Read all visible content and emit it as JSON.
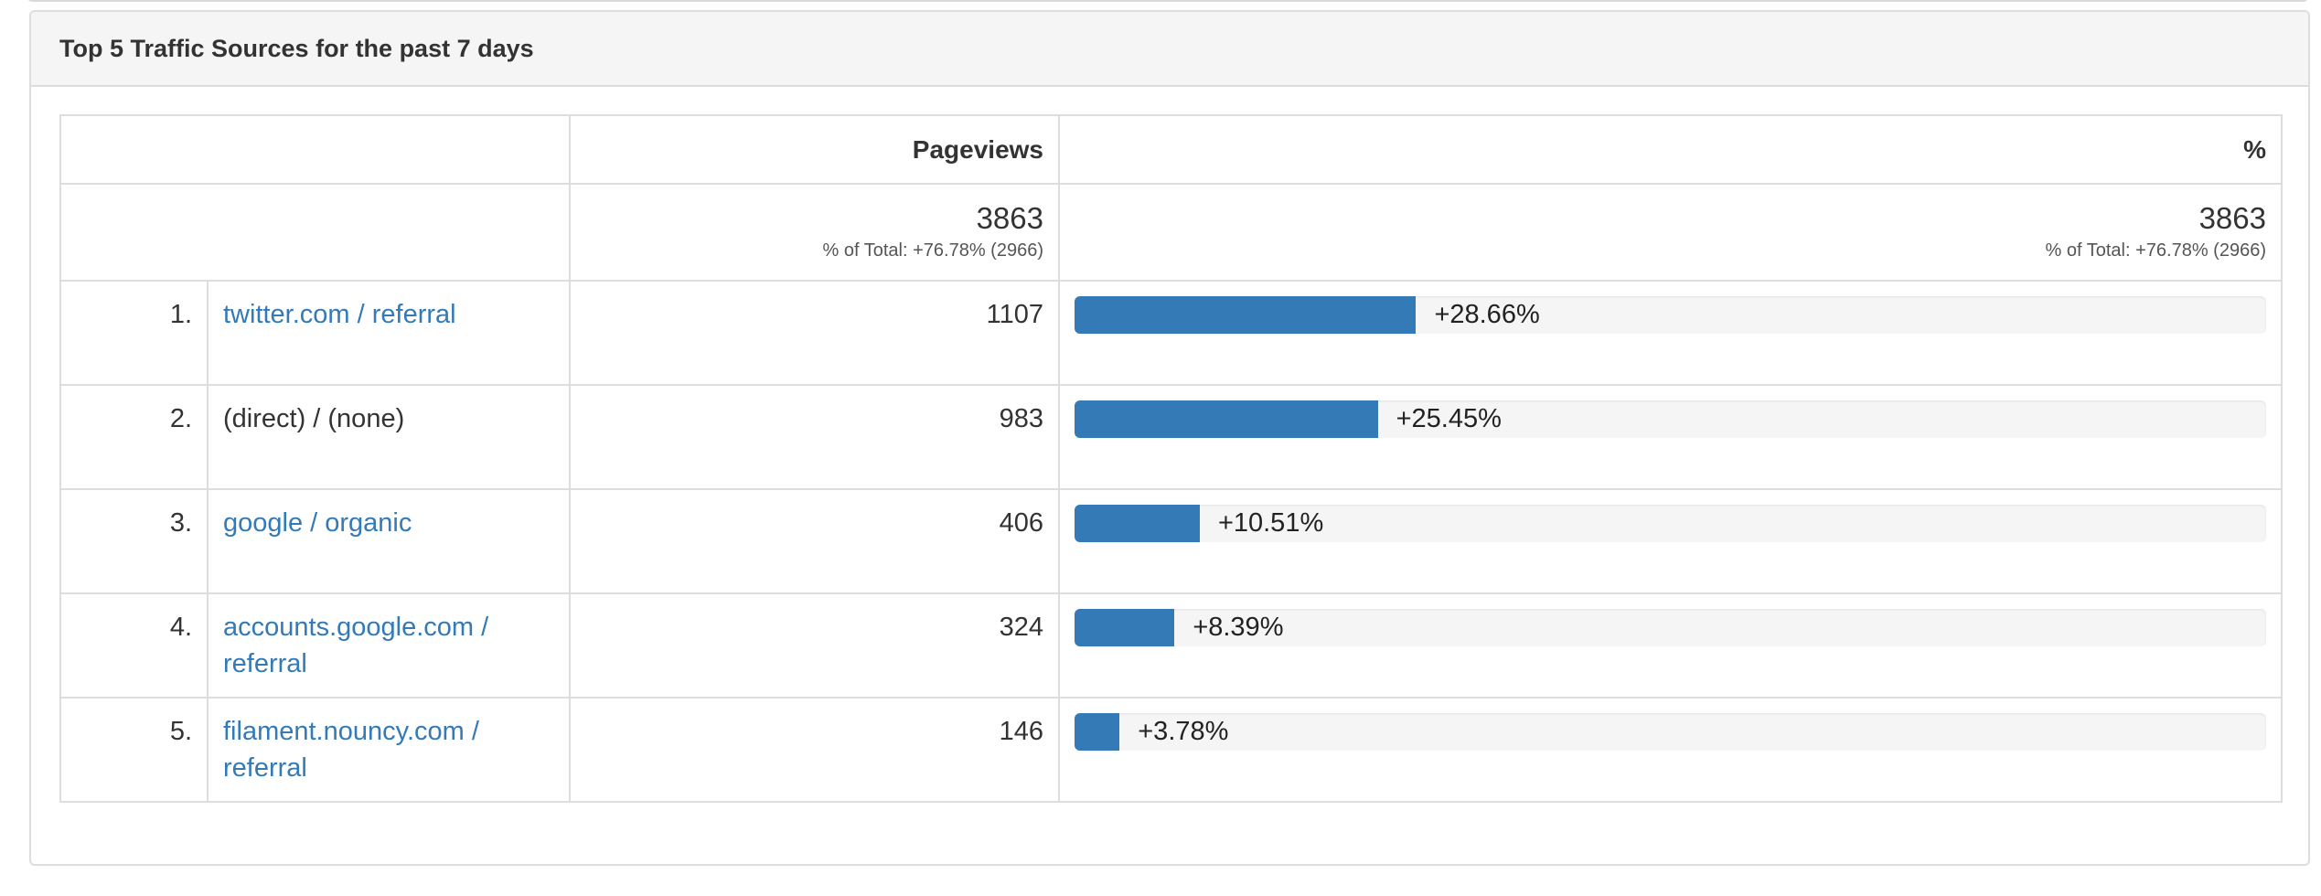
{
  "panel": {
    "title": "Top 5 Traffic Sources for the past 7 days"
  },
  "table": {
    "headers": {
      "rank": "",
      "source": "",
      "pageviews": "Pageviews",
      "percent": "%"
    },
    "totals": {
      "pageviews": {
        "value": "3863",
        "sub": "% of Total: +76.78% (2966)"
      },
      "percent": {
        "value": "3863",
        "sub": "% of Total: +76.78% (2966)"
      }
    },
    "rows": [
      {
        "rank": "1.",
        "source": "twitter.com / referral",
        "is_link": true,
        "pageviews": "1107",
        "percent_label": "+28.66%",
        "percent": 28.66
      },
      {
        "rank": "2.",
        "source": "(direct) / (none)",
        "is_link": false,
        "pageviews": "983",
        "percent_label": "+25.45%",
        "percent": 25.45
      },
      {
        "rank": "3.",
        "source": "google / organic",
        "is_link": true,
        "pageviews": "406",
        "percent_label": "+10.51%",
        "percent": 10.51
      },
      {
        "rank": "4.",
        "source": "accounts.google.com / referral",
        "is_link": true,
        "pageviews": "324",
        "percent_label": "+8.39%",
        "percent": 8.39
      },
      {
        "rank": "5.",
        "source": "filament.nouncy.com / referral",
        "is_link": true,
        "pageviews": "146",
        "percent_label": "+3.78%",
        "percent": 3.78
      }
    ]
  },
  "colors": {
    "bar": "#337ab7",
    "link": "#337ab7",
    "track": "#f5f5f5"
  }
}
